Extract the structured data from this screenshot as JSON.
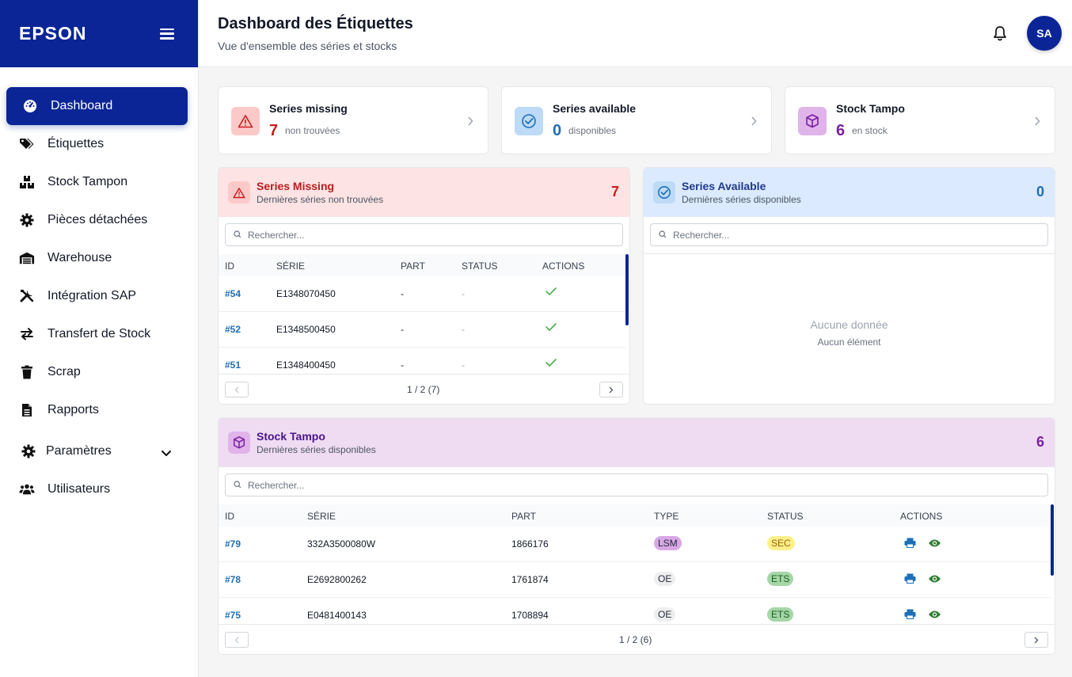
{
  "sidebar": {
    "brand": "EPSON",
    "items": [
      {
        "label": "Dashboard",
        "icon": "dashboard-gauge-icon"
      },
      {
        "label": "Étiquettes",
        "icon": "tags-icon"
      },
      {
        "label": "Stock Tampon",
        "icon": "boxes-icon"
      },
      {
        "label": "Pièces détachées",
        "icon": "gear-icon"
      },
      {
        "label": "Warehouse",
        "icon": "warehouse-icon"
      },
      {
        "label": "Intégration SAP",
        "icon": "tools-icon"
      },
      {
        "label": "Transfert de Stock",
        "icon": "transfer-arrows-icon"
      },
      {
        "label": "Scrap",
        "icon": "trash-icon"
      },
      {
        "label": "Rapports",
        "icon": "file-icon"
      },
      {
        "label": "Paramètres",
        "icon": "gear-icon"
      },
      {
        "label": "Utilisateurs",
        "icon": "users-icon"
      }
    ]
  },
  "header": {
    "title": "Dashboard des Étiquettes",
    "subtitle": "Vue d'ensemble des séries et stocks",
    "avatar": "SA"
  },
  "stats": [
    {
      "title": "Series missing",
      "value": "7",
      "label": "non trouvées",
      "color": "#c81e1e"
    },
    {
      "title": "Series available",
      "value": "0",
      "label": "disponibles",
      "color": "#1d6fb8"
    },
    {
      "title": "Stock Tampo",
      "value": "6",
      "label": "en stock",
      "color": "#7b1fa2"
    }
  ],
  "missing": {
    "title": "Series Missing",
    "subtitle": "Dernières séries non trouvées",
    "count": "7",
    "search_placeholder": "Rechercher...",
    "columns": [
      "ID",
      "SÉRIE",
      "PART",
      "STATUS",
      "ACTIONS"
    ],
    "rows": [
      {
        "id": "#54",
        "serie": "E1348070450",
        "part": "-",
        "status": "-"
      },
      {
        "id": "#52",
        "serie": "E1348500450",
        "part": "-",
        "status": "-"
      },
      {
        "id": "#51",
        "serie": "E1348400450",
        "part": "-",
        "status": "-"
      }
    ],
    "pager": "1 / 2 (7)"
  },
  "available": {
    "title": "Series Available",
    "subtitle": "Dernières séries disponibles",
    "count": "0",
    "search_placeholder": "Rechercher...",
    "empty_title": "Aucune donnée",
    "empty_sub": "Aucun élément"
  },
  "tampo": {
    "title": "Stock Tampo",
    "subtitle": "Dernières séries disponibles",
    "count": "6",
    "search_placeholder": "Rechercher...",
    "columns": [
      "ID",
      "SÉRIE",
      "PART",
      "TYPE",
      "STATUS",
      "ACTIONS"
    ],
    "rows": [
      {
        "id": "#79",
        "serie": "332A3500080W",
        "part": "1866176",
        "type": "LSM",
        "status": "SEC"
      },
      {
        "id": "#78",
        "serie": "E2692800262",
        "part": "1761874",
        "type": "OE",
        "status": "ETS"
      },
      {
        "id": "#75",
        "serie": "E0481400143",
        "part": "1708894",
        "type": "OE",
        "status": "ETS"
      }
    ],
    "pager": "1 / 2 (6)"
  }
}
